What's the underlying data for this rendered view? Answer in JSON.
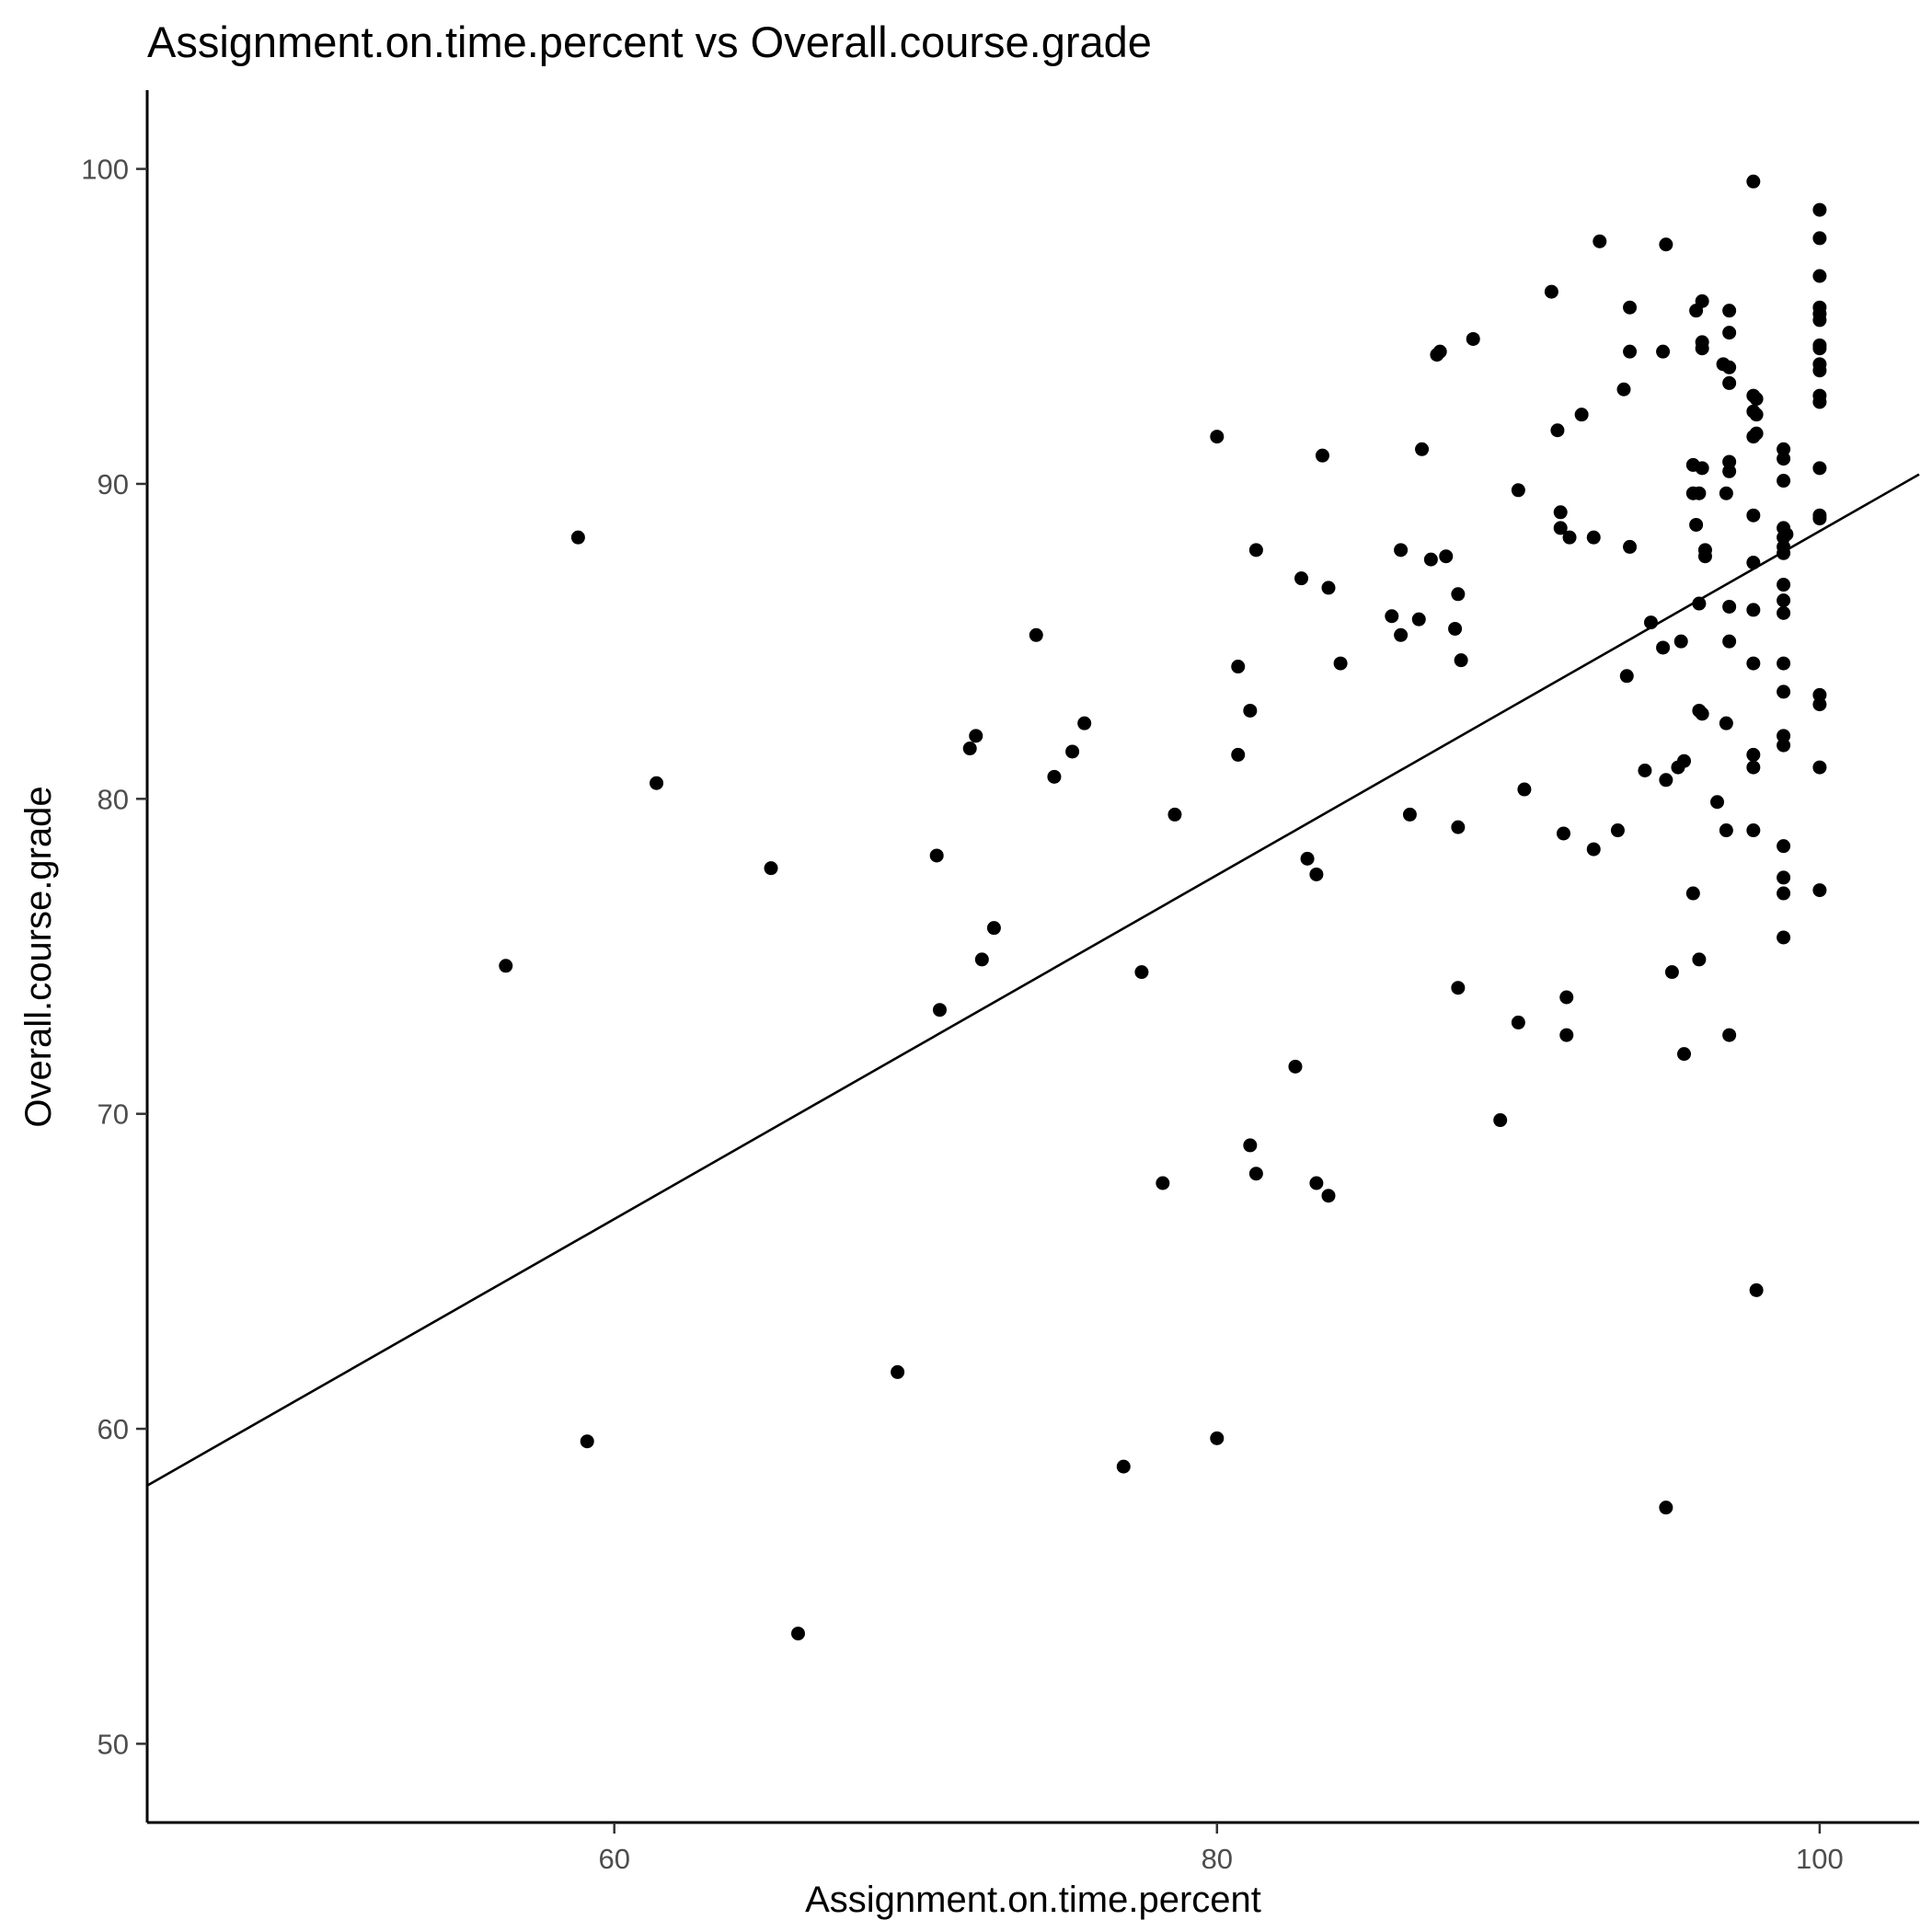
{
  "chart_data": {
    "type": "scatter",
    "title": "Assignment.on.time.percent vs Overall.course.grade",
    "xlabel": "Assignment.on.time.percent",
    "ylabel": "Overall.course.grade",
    "xlim": [
      44.5,
      103.3
    ],
    "ylim": [
      47.5,
      102.5
    ],
    "xticks": [
      60,
      80,
      100
    ],
    "yticks": [
      50,
      60,
      70,
      80,
      90,
      100
    ],
    "grid": false,
    "trend_line": {
      "slope": 0.546,
      "intercept": 33.9
    },
    "points": [
      [
        56.4,
        74.7
      ],
      [
        58.8,
        88.3
      ],
      [
        59.1,
        59.6
      ],
      [
        61.4,
        80.5
      ],
      [
        65.2,
        77.8
      ],
      [
        66.1,
        53.5
      ],
      [
        69.4,
        61.8
      ],
      [
        70.7,
        78.2
      ],
      [
        70.8,
        73.3
      ],
      [
        71.8,
        81.6
      ],
      [
        72.0,
        82.0
      ],
      [
        72.2,
        74.9
      ],
      [
        72.6,
        75.9
      ],
      [
        74.0,
        85.2
      ],
      [
        74.6,
        80.7
      ],
      [
        75.2,
        81.5
      ],
      [
        75.6,
        82.4
      ],
      [
        76.9,
        58.8
      ],
      [
        77.5,
        74.5
      ],
      [
        78.2,
        67.8
      ],
      [
        78.6,
        79.5
      ],
      [
        80.0,
        91.5
      ],
      [
        80.0,
        59.7
      ],
      [
        80.7,
        84.2
      ],
      [
        80.7,
        81.4
      ],
      [
        81.1,
        82.8
      ],
      [
        81.1,
        69.0
      ],
      [
        81.3,
        87.9
      ],
      [
        81.3,
        68.1
      ],
      [
        82.6,
        71.5
      ],
      [
        82.8,
        87.0
      ],
      [
        83.0,
        78.1
      ],
      [
        83.3,
        67.8
      ],
      [
        83.3,
        77.6
      ],
      [
        83.5,
        90.9
      ],
      [
        83.7,
        67.4
      ],
      [
        83.7,
        86.7
      ],
      [
        84.1,
        84.3
      ],
      [
        85.8,
        85.8
      ],
      [
        86.1,
        85.2
      ],
      [
        86.1,
        87.9
      ],
      [
        86.4,
        79.5
      ],
      [
        86.7,
        85.7
      ],
      [
        86.8,
        91.1
      ],
      [
        87.1,
        87.6
      ],
      [
        87.3,
        94.1
      ],
      [
        87.4,
        94.2
      ],
      [
        87.6,
        87.7
      ],
      [
        87.9,
        85.4
      ],
      [
        88.0,
        86.5
      ],
      [
        88.0,
        79.1
      ],
      [
        88.0,
        74.0
      ],
      [
        88.1,
        84.4
      ],
      [
        88.5,
        94.6
      ],
      [
        89.4,
        69.8
      ],
      [
        90.0,
        89.8
      ],
      [
        90.0,
        72.9
      ],
      [
        90.2,
        80.3
      ],
      [
        91.1,
        96.1
      ],
      [
        91.3,
        91.7
      ],
      [
        91.4,
        89.1
      ],
      [
        91.4,
        88.6
      ],
      [
        91.5,
        78.9
      ],
      [
        91.6,
        73.7
      ],
      [
        91.6,
        72.5
      ],
      [
        91.7,
        88.3
      ],
      [
        92.1,
        92.2
      ],
      [
        92.5,
        88.3
      ],
      [
        92.5,
        78.4
      ],
      [
        92.7,
        97.7
      ],
      [
        93.3,
        79.0
      ],
      [
        93.5,
        93.0
      ],
      [
        93.6,
        83.9
      ],
      [
        93.7,
        95.6
      ],
      [
        93.7,
        94.2
      ],
      [
        93.7,
        88.0
      ],
      [
        94.2,
        80.9
      ],
      [
        94.4,
        85.6
      ],
      [
        94.8,
        94.2
      ],
      [
        94.8,
        84.8
      ],
      [
        94.9,
        97.6
      ],
      [
        94.9,
        57.5
      ],
      [
        94.9,
        80.6
      ],
      [
        95.1,
        74.5
      ],
      [
        95.3,
        81.0
      ],
      [
        95.4,
        85.0
      ],
      [
        95.5,
        71.9
      ],
      [
        95.5,
        81.2
      ],
      [
        95.8,
        77.0
      ],
      [
        95.8,
        90.6
      ],
      [
        95.8,
        89.7
      ],
      [
        95.9,
        95.5
      ],
      [
        95.9,
        88.7
      ],
      [
        96.0,
        89.7
      ],
      [
        96.0,
        86.2
      ],
      [
        96.0,
        82.8
      ],
      [
        96.0,
        74.9
      ],
      [
        96.1,
        94.3
      ],
      [
        96.1,
        94.5
      ],
      [
        96.1,
        95.8
      ],
      [
        96.1,
        90.5
      ],
      [
        96.1,
        82.7
      ],
      [
        96.2,
        87.7
      ],
      [
        96.2,
        87.9
      ],
      [
        96.6,
        79.9
      ],
      [
        96.8,
        93.8
      ],
      [
        96.9,
        82.4
      ],
      [
        96.9,
        89.7
      ],
      [
        96.9,
        79.0
      ],
      [
        97.0,
        95.5
      ],
      [
        97.0,
        94.8
      ],
      [
        97.0,
        93.2
      ],
      [
        97.0,
        93.7
      ],
      [
        97.0,
        90.4
      ],
      [
        97.0,
        90.7
      ],
      [
        97.0,
        86.1
      ],
      [
        97.0,
        85.0
      ],
      [
        97.0,
        72.5
      ],
      [
        97.8,
        99.6
      ],
      [
        97.8,
        92.8
      ],
      [
        97.8,
        92.3
      ],
      [
        97.8,
        91.5
      ],
      [
        97.8,
        89.0
      ],
      [
        97.8,
        87.5
      ],
      [
        97.8,
        86.0
      ],
      [
        97.8,
        84.3
      ],
      [
        97.8,
        81.4
      ],
      [
        97.8,
        81.0
      ],
      [
        97.8,
        79.0
      ],
      [
        97.9,
        92.7
      ],
      [
        97.9,
        92.2
      ],
      [
        97.9,
        91.6
      ],
      [
        97.9,
        64.4
      ],
      [
        98.8,
        91.1
      ],
      [
        98.8,
        90.8
      ],
      [
        98.8,
        90.1
      ],
      [
        98.8,
        88.6
      ],
      [
        98.8,
        88.3
      ],
      [
        98.8,
        88.0
      ],
      [
        98.8,
        87.8
      ],
      [
        98.8,
        86.8
      ],
      [
        98.8,
        86.3
      ],
      [
        98.8,
        85.9
      ],
      [
        98.8,
        84.3
      ],
      [
        98.8,
        83.4
      ],
      [
        98.8,
        82.0
      ],
      [
        98.8,
        81.7
      ],
      [
        98.8,
        78.5
      ],
      [
        98.8,
        77.5
      ],
      [
        98.8,
        77.0
      ],
      [
        98.8,
        75.6
      ],
      [
        98.9,
        88.4
      ],
      [
        100.0,
        98.7
      ],
      [
        100.0,
        97.8
      ],
      [
        100.0,
        96.6
      ],
      [
        100.0,
        95.6
      ],
      [
        100.0,
        95.4
      ],
      [
        100.0,
        95.2
      ],
      [
        100.0,
        94.4
      ],
      [
        100.0,
        94.3
      ],
      [
        100.0,
        93.8
      ],
      [
        100.0,
        93.6
      ],
      [
        100.0,
        92.8
      ],
      [
        100.0,
        92.6
      ],
      [
        100.0,
        90.5
      ],
      [
        100.0,
        89.0
      ],
      [
        100.0,
        88.9
      ],
      [
        100.0,
        83.3
      ],
      [
        100.0,
        83.0
      ],
      [
        100.0,
        81.0
      ],
      [
        100.0,
        77.1
      ]
    ]
  }
}
